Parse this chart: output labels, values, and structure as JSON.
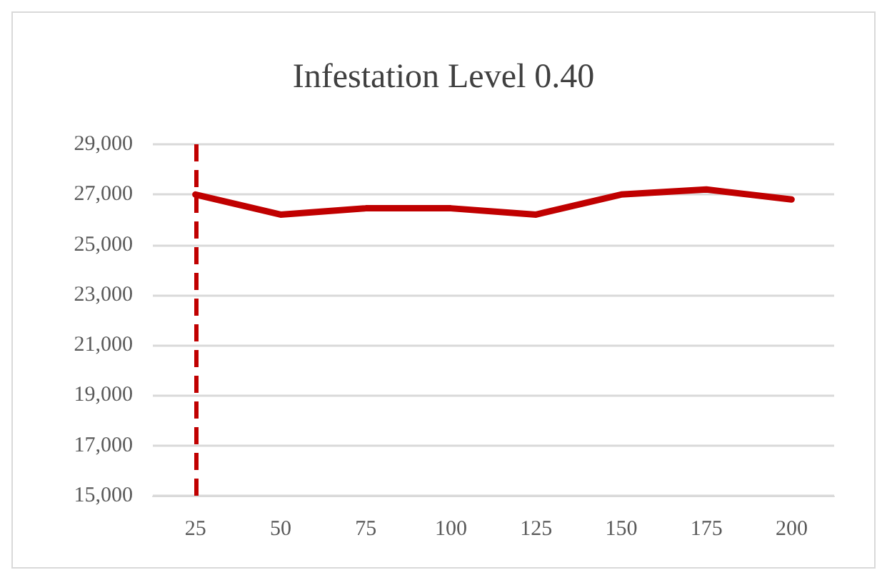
{
  "chart_data": {
    "type": "line",
    "title": "Infestation Level 0.40",
    "categories": [
      "25",
      "50",
      "75",
      "100",
      "125",
      "150",
      "175",
      "200"
    ],
    "series": [
      {
        "color": "#c00000",
        "values": [
          27000,
          26200,
          26450,
          26450,
          26200,
          27000,
          27200,
          26800
        ]
      }
    ],
    "ylim": [
      15000,
      29000
    ],
    "yticks": [
      {
        "value": 15000,
        "label": "15,000"
      },
      {
        "value": 17000,
        "label": "17,000"
      },
      {
        "value": 19000,
        "label": "19,000"
      },
      {
        "value": 21000,
        "label": "21,000"
      },
      {
        "value": 23000,
        "label": "23,000"
      },
      {
        "value": 25000,
        "label": "25,000"
      },
      {
        "value": 27000,
        "label": "27,000"
      },
      {
        "value": 29000,
        "label": "29,000"
      }
    ],
    "grid": "y",
    "marker": "none",
    "line_style": "solid",
    "ref_lines": [
      {
        "axis": "x",
        "value": "25",
        "color": "#c00000",
        "line_style": "dashed"
      }
    ]
  }
}
